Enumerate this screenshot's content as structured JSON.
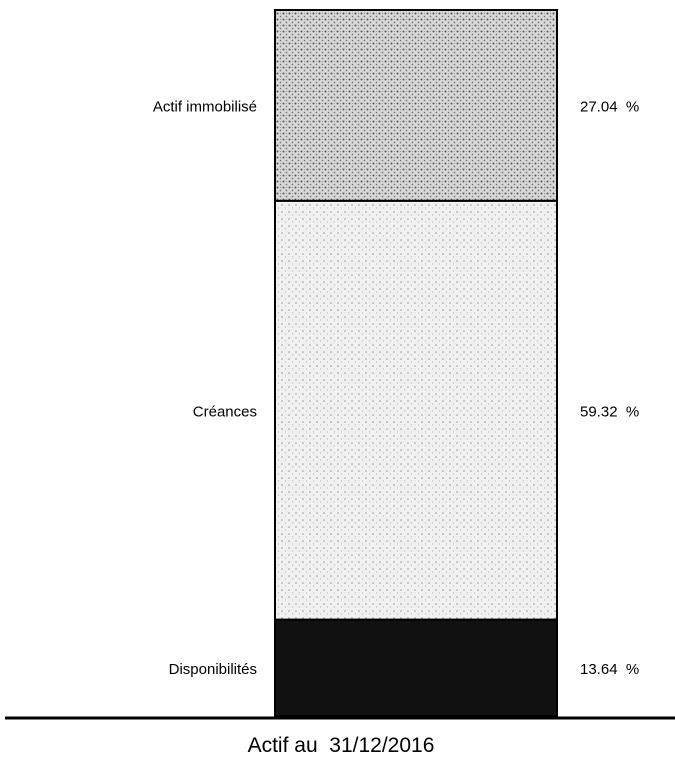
{
  "chart_data": {
    "type": "bar",
    "stacked": true,
    "orientation": "vertical",
    "title": "",
    "xlabel": "",
    "ylabel": "",
    "categories": [
      "Actif au  31/12/2016"
    ],
    "series": [
      {
        "name": "Actif immobilisé",
        "values": [
          27.04
        ],
        "label": "27.04  %",
        "color": "#a8a8a8",
        "pattern": "dense-dots"
      },
      {
        "name": "Créances",
        "values": [
          59.32
        ],
        "label": "59.32  %",
        "color": "#dcdcdc",
        "pattern": "light-dots"
      },
      {
        "name": "Disponibilités",
        "values": [
          13.64
        ],
        "label": "13.64  %",
        "color": "#111111",
        "pattern": "solid"
      }
    ],
    "ylim": [
      0,
      100
    ],
    "grid": false,
    "legend": "none"
  }
}
